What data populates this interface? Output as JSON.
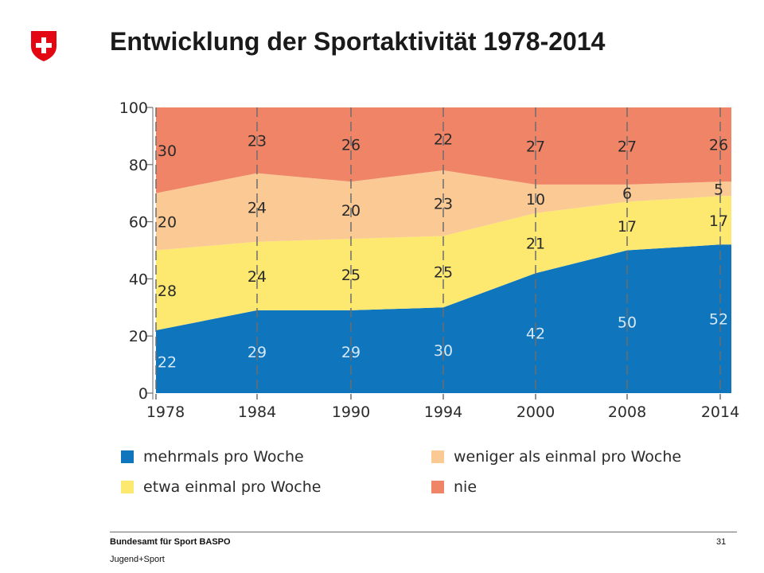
{
  "header": {
    "title": "Entwicklung der Sportaktivität 1978-2014"
  },
  "logo": {
    "icon": "swiss-cross-icon",
    "red": "#e30613"
  },
  "chart_data": {
    "type": "area",
    "stacked": true,
    "x": [
      "1978",
      "1984",
      "1990",
      "1994",
      "2000",
      "2008",
      "2014"
    ],
    "ylim": [
      0,
      100
    ],
    "yticks": [
      0,
      20,
      40,
      60,
      80,
      100
    ],
    "grid": false,
    "legend_position": "bottom",
    "series": [
      {
        "name": "mehrmals pro Woche",
        "values": [
          22,
          29,
          29,
          30,
          42,
          50,
          52
        ],
        "color": "#0f75bc",
        "label_color": "#d6e8f7"
      },
      {
        "name": "etwa einmal pro Woche",
        "values": [
          28,
          24,
          25,
          25,
          21,
          17,
          17
        ],
        "color": "#fde870",
        "label_color": "#2b2b2b"
      },
      {
        "name": "weniger als einmal pro Woche",
        "values": [
          20,
          24,
          20,
          23,
          10,
          6,
          5
        ],
        "color": "#fbc994",
        "label_color": "#2b2b2b"
      },
      {
        "name": "nie",
        "values": [
          30,
          23,
          26,
          22,
          27,
          27,
          26
        ],
        "color": "#f08466",
        "label_color": "#2b2b2b"
      }
    ]
  },
  "legend": {
    "items": [
      {
        "label": "mehrmals pro Woche",
        "color": "#0f75bc"
      },
      {
        "label": "weniger als einmal pro Woche",
        "color": "#fbc994"
      },
      {
        "label": "etwa einmal pro Woche",
        "color": "#fde870"
      },
      {
        "label": "nie",
        "color": "#f08466"
      }
    ]
  },
  "footer": {
    "organization": "Bundesamt für Sport BASPO",
    "program": "Jugend+Sport",
    "page_number": "31"
  }
}
